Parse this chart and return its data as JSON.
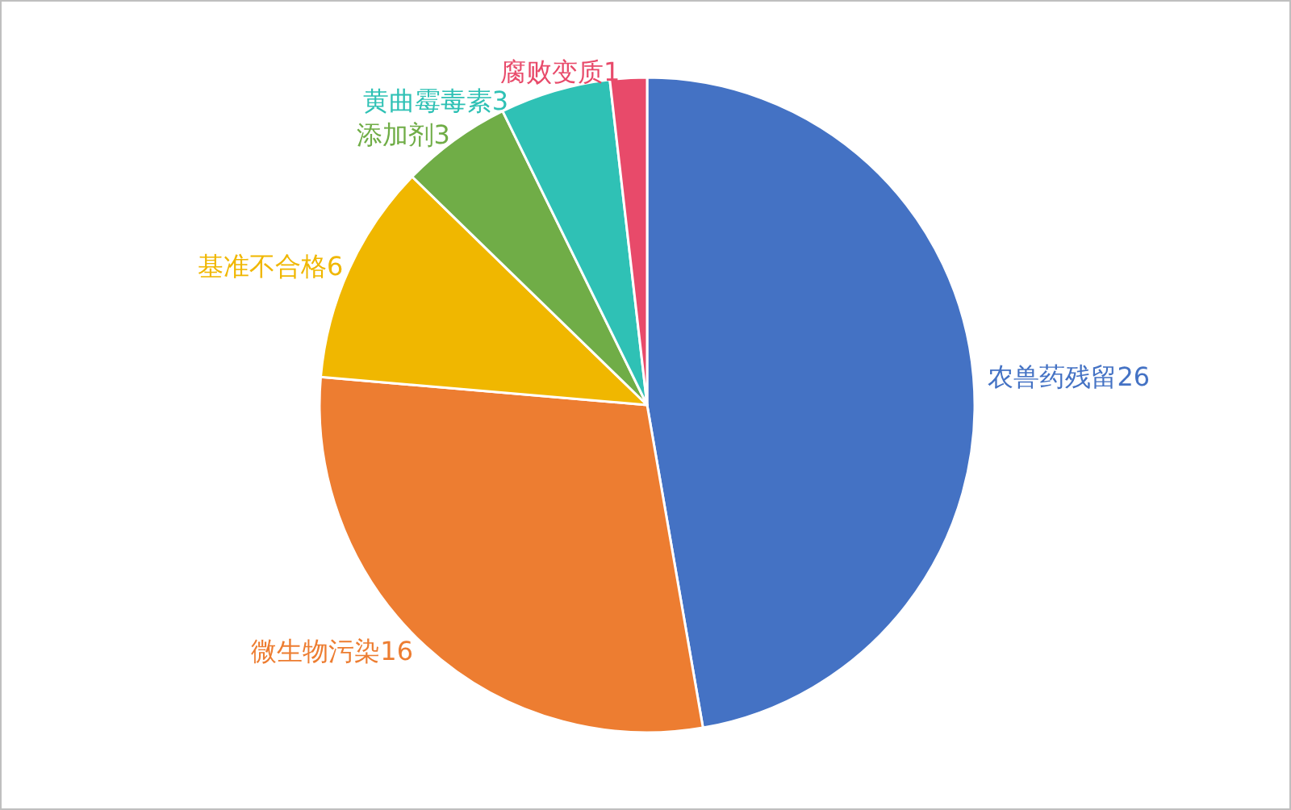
{
  "chart_data": {
    "type": "pie",
    "categories": [
      "农兽药残留",
      "微生物污染",
      "基准不合格",
      "添加剂",
      "黄曲霉毒素",
      "腐败变质"
    ],
    "values": [
      26,
      16,
      6,
      3,
      3,
      1
    ],
    "colors": [
      "#4472c4",
      "#ed7d31",
      "#f0b700",
      "#70ad47",
      "#2fc1b5",
      "#e84a6a"
    ],
    "data_labels": true,
    "legend": false
  }
}
